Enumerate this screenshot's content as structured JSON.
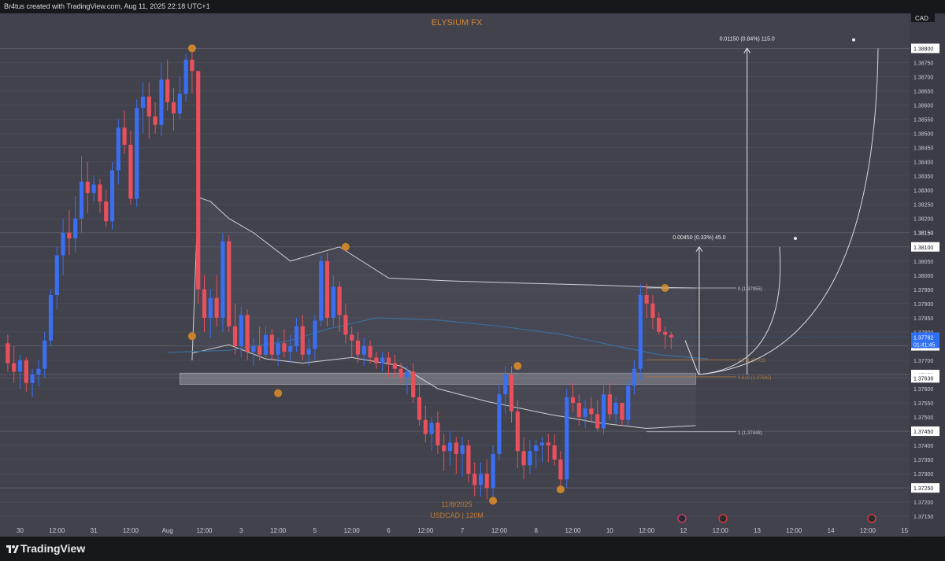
{
  "header": {
    "caption": "Br4tus created with TradingView.com, Aug 11, 2025 22:18 UTC+1"
  },
  "footer": {
    "brand": "TradingView"
  },
  "colors": {
    "up": "#3b6ef0",
    "down": "#e8505d",
    "marker": "#c8832c",
    "ema": "#3a6f9a",
    "band": "#cfd0d6",
    "background": "#41424c"
  },
  "chart_data": {
    "type": "candlestick",
    "title": "ELYSIUM FX",
    "watermark_date": "11/8/2025",
    "watermark_symbol": "USDCAD | 120M",
    "currency": "CAD",
    "x_labels": [
      {
        "label": "30",
        "i": 2
      },
      {
        "label": "12:00",
        "i": 8
      },
      {
        "label": "31",
        "i": 14
      },
      {
        "label": "12:00",
        "i": 20
      },
      {
        "label": "Aug",
        "i": 26
      },
      {
        "label": "12:00",
        "i": 32
      },
      {
        "label": "3",
        "i": 38
      },
      {
        "label": "12:00",
        "i": 44
      },
      {
        "label": "5",
        "i": 50
      },
      {
        "label": "12:00",
        "i": 56
      },
      {
        "label": "6",
        "i": 62
      },
      {
        "label": "12:00",
        "i": 68
      },
      {
        "label": "7",
        "i": 74
      },
      {
        "label": "12:00",
        "i": 80
      },
      {
        "label": "8",
        "i": 86
      },
      {
        "label": "12:00",
        "i": 92
      },
      {
        "label": "10",
        "i": 98
      },
      {
        "label": "12:00",
        "i": 104
      },
      {
        "label": "12",
        "i": 110
      },
      {
        "label": "12:00",
        "i": 116
      },
      {
        "label": "13",
        "i": 122
      },
      {
        "label": "12:00",
        "i": 128
      },
      {
        "label": "14",
        "i": 134
      },
      {
        "label": "12:00",
        "i": 140
      },
      {
        "label": "15",
        "i": 146
      }
    ],
    "y_ticks": [
      1.3715,
      1.372,
      1.3725,
      1.373,
      1.3735,
      1.374,
      1.3745,
      1.375,
      1.3755,
      1.376,
      1.3765,
      1.377,
      1.3775,
      1.378,
      1.3785,
      1.379,
      1.3795,
      1.38,
      1.3805,
      1.381,
      1.3815,
      1.382,
      1.3825,
      1.383,
      1.3835,
      1.384,
      1.3845,
      1.385,
      1.3855,
      1.386,
      1.3865,
      1.387,
      1.3875,
      1.388
    ],
    "ylim": [
      1.3712,
      1.3889
    ],
    "price_labels": [
      {
        "label": "1.38800",
        "value": 1.388
      },
      {
        "label": "1.38150",
        "value": 1.3815,
        "plain": true
      },
      {
        "label": "1.38100",
        "value": 1.381
      },
      {
        "label": "1.37751",
        "value": 1.37751
      },
      {
        "label": "1.37650",
        "value": 1.3765
      },
      {
        "label": "1.37638",
        "value": 1.37638
      },
      {
        "label": "1.37450",
        "value": 1.3745
      },
      {
        "label": "1.37250",
        "value": 1.3725
      }
    ],
    "current_price": {
      "label": "1.37782",
      "countdown": "01:41:45",
      "value": 1.37782
    },
    "candles": [
      [
        1.3776,
        1.3779,
        1.3766,
        1.3769
      ],
      [
        1.3769,
        1.3775,
        1.3762,
        1.3766
      ],
      [
        1.3766,
        1.3772,
        1.376,
        1.377
      ],
      [
        1.377,
        1.3771,
        1.3759,
        1.3762
      ],
      [
        1.3762,
        1.3767,
        1.3757,
        1.3765
      ],
      [
        1.3765,
        1.377,
        1.3761,
        1.3767
      ],
      [
        1.3767,
        1.378,
        1.3764,
        1.3777
      ],
      [
        1.3777,
        1.3795,
        1.3775,
        1.3793
      ],
      [
        1.3793,
        1.381,
        1.3788,
        1.3807
      ],
      [
        1.3807,
        1.382,
        1.38,
        1.3815
      ],
      [
        1.3815,
        1.3823,
        1.3807,
        1.3813
      ],
      [
        1.3813,
        1.3828,
        1.3808,
        1.382
      ],
      [
        1.382,
        1.3842,
        1.3815,
        1.3833
      ],
      [
        1.3833,
        1.384,
        1.3822,
        1.3829
      ],
      [
        1.3829,
        1.3835,
        1.3826,
        1.3832
      ],
      [
        1.3832,
        1.3834,
        1.3822,
        1.3826
      ],
      [
        1.3826,
        1.383,
        1.3817,
        1.3819
      ],
      [
        1.3819,
        1.384,
        1.3816,
        1.3837
      ],
      [
        1.3837,
        1.3855,
        1.3832,
        1.3852
      ],
      [
        1.3852,
        1.3858,
        1.3843,
        1.3846
      ],
      [
        1.3846,
        1.3851,
        1.3825,
        1.3827
      ],
      [
        1.3827,
        1.3862,
        1.3824,
        1.3859
      ],
      [
        1.3859,
        1.3868,
        1.385,
        1.3863
      ],
      [
        1.3863,
        1.3868,
        1.3848,
        1.3856
      ],
      [
        1.3856,
        1.3861,
        1.385,
        1.3853
      ],
      [
        1.3853,
        1.3875,
        1.3849,
        1.3869
      ],
      [
        1.3869,
        1.3876,
        1.3858,
        1.3861
      ],
      [
        1.3861,
        1.3866,
        1.3851,
        1.3857
      ],
      [
        1.3857,
        1.387,
        1.3855,
        1.3864
      ],
      [
        1.3864,
        1.3878,
        1.3861,
        1.3876
      ],
      [
        1.3876,
        1.388,
        1.3864,
        1.3872
      ],
      [
        1.3872,
        1.3872,
        1.379,
        1.3795
      ],
      [
        1.3795,
        1.38,
        1.378,
        1.3785
      ],
      [
        1.3785,
        1.3795,
        1.3778,
        1.3792
      ],
      [
        1.3792,
        1.38,
        1.3782,
        1.3785
      ],
      [
        1.3785,
        1.3815,
        1.378,
        1.3812
      ],
      [
        1.3812,
        1.3814,
        1.378,
        1.3782
      ],
      [
        1.3782,
        1.379,
        1.3772,
        1.3775
      ],
      [
        1.3775,
        1.3789,
        1.3771,
        1.3786
      ],
      [
        1.3786,
        1.3788,
        1.377,
        1.3773
      ],
      [
        1.3773,
        1.3778,
        1.3768,
        1.3775
      ],
      [
        1.3775,
        1.3782,
        1.377,
        1.3772
      ],
      [
        1.3772,
        1.3782,
        1.3771,
        1.3779
      ],
      [
        1.3779,
        1.3781,
        1.377,
        1.3772
      ],
      [
        1.3772,
        1.3778,
        1.3768,
        1.3776
      ],
      [
        1.3776,
        1.3781,
        1.3771,
        1.3773
      ],
      [
        1.3773,
        1.3779,
        1.3769,
        1.3775
      ],
      [
        1.3775,
        1.3785,
        1.3773,
        1.3782
      ],
      [
        1.3782,
        1.3786,
        1.377,
        1.3772
      ],
      [
        1.3772,
        1.3778,
        1.3768,
        1.3774
      ],
      [
        1.3774,
        1.3786,
        1.377,
        1.3784
      ],
      [
        1.3784,
        1.3807,
        1.3782,
        1.3805
      ],
      [
        1.3805,
        1.3808,
        1.3782,
        1.3785
      ],
      [
        1.3785,
        1.38,
        1.3782,
        1.3796
      ],
      [
        1.3796,
        1.3798,
        1.378,
        1.3786
      ],
      [
        1.3786,
        1.379,
        1.3776,
        1.3779
      ],
      [
        1.3779,
        1.3782,
        1.3771,
        1.3777
      ],
      [
        1.3777,
        1.378,
        1.3769,
        1.3772
      ],
      [
        1.3772,
        1.3778,
        1.3768,
        1.3775
      ],
      [
        1.3775,
        1.3777,
        1.3769,
        1.3771
      ],
      [
        1.3771,
        1.3773,
        1.3767,
        1.3769
      ],
      [
        1.3769,
        1.3773,
        1.3766,
        1.3771
      ],
      [
        1.3771,
        1.3773,
        1.3764,
        1.3769
      ],
      [
        1.3769,
        1.3772,
        1.3764,
        1.3767
      ],
      [
        1.3767,
        1.3769,
        1.3762,
        1.3764
      ],
      [
        1.3764,
        1.3768,
        1.3758,
        1.3766
      ],
      [
        1.3766,
        1.3769,
        1.3755,
        1.3757
      ],
      [
        1.3757,
        1.3762,
        1.3747,
        1.3749
      ],
      [
        1.3749,
        1.3754,
        1.3741,
        1.3744
      ],
      [
        1.3744,
        1.375,
        1.3738,
        1.3748
      ],
      [
        1.3748,
        1.3752,
        1.3737,
        1.374
      ],
      [
        1.374,
        1.3744,
        1.3731,
        1.3738
      ],
      [
        1.3738,
        1.3745,
        1.3733,
        1.3741
      ],
      [
        1.3741,
        1.3743,
        1.373,
        1.3737
      ],
      [
        1.3737,
        1.3743,
        1.3729,
        1.374
      ],
      [
        1.374,
        1.3742,
        1.3727,
        1.373
      ],
      [
        1.373,
        1.3734,
        1.3722,
        1.3726
      ],
      [
        1.3726,
        1.3734,
        1.3722,
        1.373
      ],
      [
        1.373,
        1.3735,
        1.3721,
        1.3725
      ],
      [
        1.3725,
        1.374,
        1.3721,
        1.3737
      ],
      [
        1.3737,
        1.3762,
        1.3735,
        1.3758
      ],
      [
        1.3758,
        1.3768,
        1.3751,
        1.3765
      ],
      [
        1.3765,
        1.3768,
        1.3748,
        1.3752
      ],
      [
        1.3752,
        1.3756,
        1.3732,
        1.3738
      ],
      [
        1.3738,
        1.3743,
        1.3728,
        1.3733
      ],
      [
        1.3733,
        1.3742,
        1.373,
        1.3738
      ],
      [
        1.3738,
        1.3742,
        1.3732,
        1.374
      ],
      [
        1.374,
        1.3743,
        1.3734,
        1.3741
      ],
      [
        1.3741,
        1.3744,
        1.3734,
        1.374
      ],
      [
        1.374,
        1.3744,
        1.3733,
        1.3735
      ],
      [
        1.3735,
        1.3738,
        1.3726,
        1.3728
      ],
      [
        1.3728,
        1.376,
        1.3725,
        1.3757
      ],
      [
        1.3757,
        1.3762,
        1.3752,
        1.3755
      ],
      [
        1.3755,
        1.3758,
        1.3747,
        1.375
      ],
      [
        1.375,
        1.3756,
        1.3746,
        1.3753
      ],
      [
        1.3753,
        1.3757,
        1.3748,
        1.3751
      ],
      [
        1.3751,
        1.3756,
        1.3745,
        1.3746
      ],
      [
        1.3746,
        1.3762,
        1.3744,
        1.3758
      ],
      [
        1.3758,
        1.3762,
        1.3749,
        1.3751
      ],
      [
        1.3751,
        1.3757,
        1.3748,
        1.3755
      ],
      [
        1.3755,
        1.3755,
        1.3747,
        1.3749
      ],
      [
        1.3749,
        1.3763,
        1.3747,
        1.3761
      ],
      [
        1.3761,
        1.377,
        1.3758,
        1.3767
      ],
      [
        1.3767,
        1.3797,
        1.3763,
        1.3793
      ],
      [
        1.3793,
        1.3797,
        1.3785,
        1.379
      ],
      [
        1.379,
        1.3793,
        1.3781,
        1.3785
      ],
      [
        1.3785,
        1.3787,
        1.3779,
        1.378
      ],
      [
        1.378,
        1.3782,
        1.3774,
        1.3779
      ],
      [
        1.3779,
        1.378,
        1.3774,
        1.3778
      ]
    ],
    "markers": [
      {
        "i": 30,
        "price": 1.388
      },
      {
        "i": 30,
        "price": 1.37785
      },
      {
        "i": 55,
        "price": 1.381
      },
      {
        "i": 44,
        "price": 1.37584
      },
      {
        "i": 79,
        "price": 1.37205
      },
      {
        "i": 90,
        "price": 1.37245
      },
      {
        "i": 83,
        "price": 1.3768
      },
      {
        "i": 107,
        "price": 1.37955
      }
    ],
    "box": {
      "x1_i": 28,
      "x2_i": 112,
      "top": 1.37655,
      "bottom": 1.37615
    },
    "ema": [
      [
        26,
        1.37728
      ],
      [
        36,
        1.37735
      ],
      [
        46,
        1.3777
      ],
      [
        52,
        1.3781
      ],
      [
        60,
        1.3785
      ],
      [
        70,
        1.37842
      ],
      [
        80,
        1.3782
      ],
      [
        90,
        1.37792
      ],
      [
        98,
        1.37755
      ],
      [
        106,
        1.3772
      ],
      [
        114,
        1.37705
      ]
    ],
    "env_upper": [
      [
        30,
        1.377
      ],
      [
        31,
        1.38275
      ],
      [
        33,
        1.3826
      ],
      [
        36,
        1.382
      ],
      [
        40,
        1.3815
      ],
      [
        46,
        1.3805
      ],
      [
        54,
        1.381
      ],
      [
        62,
        1.3799
      ],
      [
        72,
        1.3798
      ],
      [
        84,
        1.37972
      ],
      [
        96,
        1.37965
      ],
      [
        106,
        1.37957
      ],
      [
        112,
        1.37955
      ]
    ],
    "env_lower": [
      [
        30,
        1.37725
      ],
      [
        32,
        1.37735
      ],
      [
        36,
        1.37755
      ],
      [
        42,
        1.37705
      ],
      [
        48,
        1.3769
      ],
      [
        56,
        1.3771
      ],
      [
        64,
        1.3768
      ],
      [
        70,
        1.376
      ],
      [
        78,
        1.37555
      ],
      [
        88,
        1.3751
      ],
      [
        96,
        1.3748
      ],
      [
        104,
        1.3746
      ],
      [
        112,
        1.3747
      ]
    ],
    "fib": [
      {
        "label": "0 (1.37955)",
        "value": 1.37955,
        "color": "#c4c5cb"
      },
      {
        "label": "0.5 (1.37702)",
        "value": 1.37702,
        "color": "#b07a3b"
      },
      {
        "label": "0.618 (1.37642)",
        "value": 1.37642,
        "color": "#b07a3b"
      },
      {
        "label": "1 (1.37448)",
        "value": 1.37448,
        "color": "#c4c5cb"
      }
    ],
    "projections": [
      {
        "label": "0.01150 (0.84%) 115.0",
        "from": 1.3765,
        "to": 1.388,
        "x_i": 116
      },
      {
        "label": "0.00450 (0.33%) 45.0",
        "from": 1.3765,
        "to": 1.381,
        "x_i": 110
      }
    ]
  }
}
